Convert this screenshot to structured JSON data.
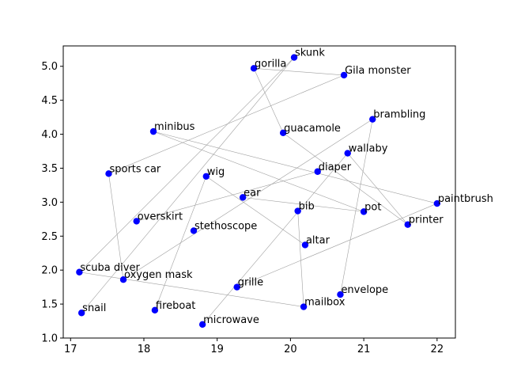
{
  "chart_data": {
    "type": "scatter",
    "title": "",
    "xlabel": "",
    "ylabel": "",
    "xlim": [
      16.9,
      22.25
    ],
    "ylim": [
      1.0,
      5.3
    ],
    "xticks": [
      17,
      18,
      19,
      20,
      21,
      22
    ],
    "yticks": [
      1.0,
      1.5,
      2.0,
      2.5,
      3.0,
      3.5,
      4.0,
      4.5,
      5.0
    ],
    "xtick_labels": [
      "17",
      "18",
      "19",
      "20",
      "21",
      "22"
    ],
    "ytick_labels": [
      "1.0",
      "1.5",
      "2.0",
      "2.5",
      "3.0",
      "3.5",
      "4.0",
      "4.5",
      "5.0"
    ],
    "grid": false,
    "marker_color": "#0000ff",
    "edge_color": "#a0a0a0",
    "points": [
      {
        "label": "skunk",
        "x": 20.05,
        "y": 5.13
      },
      {
        "label": "gorilla",
        "x": 19.5,
        "y": 4.97
      },
      {
        "label": "Gila monster",
        "x": 20.73,
        "y": 4.87
      },
      {
        "label": "brambling",
        "x": 21.12,
        "y": 4.22
      },
      {
        "label": "minibus",
        "x": 18.13,
        "y": 4.04
      },
      {
        "label": "guacamole",
        "x": 19.9,
        "y": 4.02
      },
      {
        "label": "wallaby",
        "x": 20.78,
        "y": 3.72
      },
      {
        "label": "sports car",
        "x": 17.52,
        "y": 3.42
      },
      {
        "label": "diaper",
        "x": 20.37,
        "y": 3.45
      },
      {
        "label": "wig",
        "x": 18.85,
        "y": 3.38
      },
      {
        "label": "ear",
        "x": 19.35,
        "y": 3.07
      },
      {
        "label": "paintbrush",
        "x": 22.0,
        "y": 2.98
      },
      {
        "label": "bib",
        "x": 20.1,
        "y": 2.87
      },
      {
        "label": "pot",
        "x": 21.0,
        "y": 2.86
      },
      {
        "label": "overskirt",
        "x": 17.9,
        "y": 2.72
      },
      {
        "label": "printer",
        "x": 21.6,
        "y": 2.67
      },
      {
        "label": "stethoscope",
        "x": 18.68,
        "y": 2.58
      },
      {
        "label": "altar",
        "x": 20.2,
        "y": 2.37
      },
      {
        "label": "scuba diver",
        "x": 17.12,
        "y": 1.97
      },
      {
        "label": "oxygen mask",
        "x": 17.72,
        "y": 1.86
      },
      {
        "label": "grille",
        "x": 19.27,
        "y": 1.75
      },
      {
        "label": "envelope",
        "x": 20.68,
        "y": 1.64
      },
      {
        "label": "mailbox",
        "x": 20.18,
        "y": 1.46
      },
      {
        "label": "fireboat",
        "x": 18.15,
        "y": 1.41
      },
      {
        "label": "snail",
        "x": 17.15,
        "y": 1.37
      },
      {
        "label": "microwave",
        "x": 18.8,
        "y": 1.2
      }
    ],
    "edges": [
      [
        "skunk",
        "snail"
      ],
      [
        "skunk",
        "scuba diver"
      ],
      [
        "gorilla",
        "Gila monster"
      ],
      [
        "gorilla",
        "guacamole"
      ],
      [
        "Gila monster",
        "sports car"
      ],
      [
        "brambling",
        "envelope"
      ],
      [
        "brambling",
        "oxygen mask"
      ],
      [
        "minibus",
        "paintbrush"
      ],
      [
        "minibus",
        "pot"
      ],
      [
        "guacamole",
        "printer"
      ],
      [
        "wallaby",
        "printer"
      ],
      [
        "wallaby",
        "microwave"
      ],
      [
        "sports car",
        "oxygen mask"
      ],
      [
        "diaper",
        "overskirt"
      ],
      [
        "wig",
        "altar"
      ],
      [
        "wig",
        "fireboat"
      ],
      [
        "ear",
        "pot"
      ],
      [
        "paintbrush",
        "grille"
      ],
      [
        "bib",
        "mailbox"
      ],
      [
        "scuba diver",
        "mailbox"
      ]
    ]
  }
}
